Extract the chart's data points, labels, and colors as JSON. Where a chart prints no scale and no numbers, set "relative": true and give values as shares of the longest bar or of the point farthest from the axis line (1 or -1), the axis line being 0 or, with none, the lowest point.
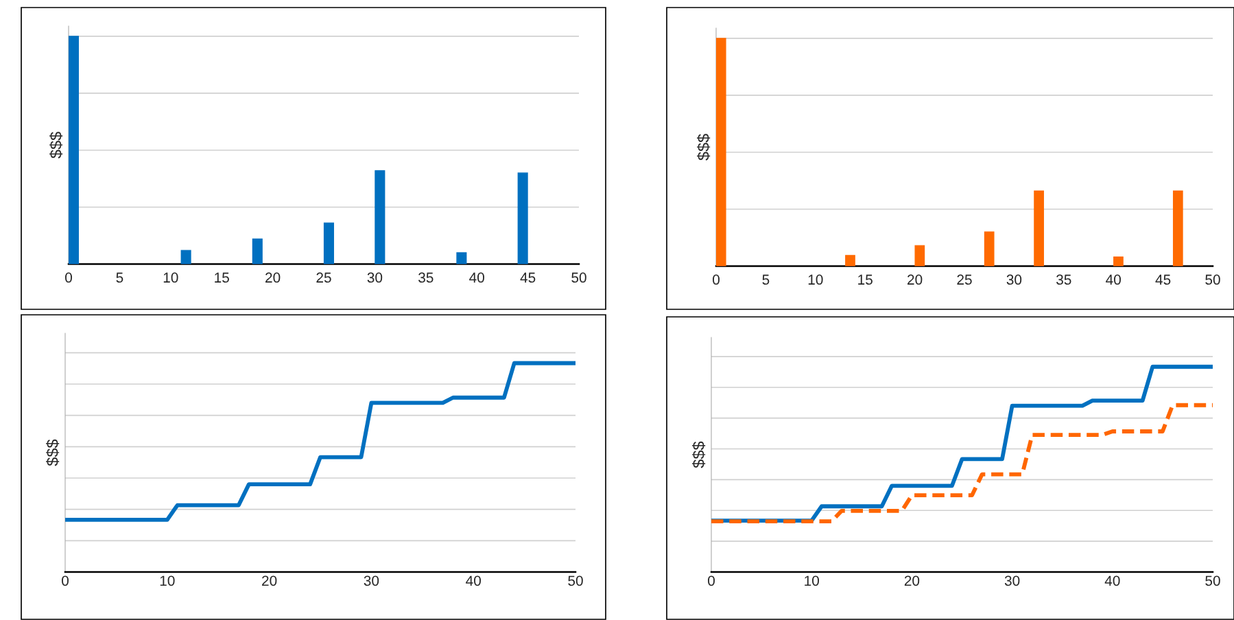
{
  "chart_data": [
    {
      "type": "bar",
      "ylabel": "$$$",
      "relative": true,
      "x": [
        0.5,
        11.5,
        18.5,
        25.5,
        30.5,
        38.5,
        44.5
      ],
      "values": [
        1,
        0.06,
        0.11,
        0.18,
        0.41,
        0.05,
        0.4
      ],
      "color": "#0070c0",
      "xlim": [
        0,
        50
      ],
      "xticks": [
        0,
        5,
        10,
        15,
        20,
        25,
        30,
        35,
        40,
        45,
        50
      ],
      "grid": "y",
      "tick_labels": "x"
    },
    {
      "type": "bar",
      "ylabel": "$$$",
      "relative": true,
      "x": [
        0.5,
        13.5,
        20.5,
        27.5,
        32.5,
        40.5,
        46.5
      ],
      "values": [
        1,
        0.047,
        0.09,
        0.15,
        0.33,
        0.04,
        0.33
      ],
      "color": "#ff6a00",
      "xlim": [
        0,
        50
      ],
      "xticks": [
        0,
        5,
        10,
        15,
        20,
        25,
        30,
        35,
        40,
        45,
        50
      ],
      "grid": "y",
      "tick_labels": "x"
    },
    {
      "type": "line",
      "ylabel": "$$$",
      "relative": true,
      "xlim": [
        0,
        50
      ],
      "xticks": [
        0,
        10,
        20,
        30,
        40,
        50
      ],
      "grid": "y",
      "tick_labels": "x",
      "series": [
        {
          "color": "#0070c0",
          "line_style": "solid",
          "x": [
            0,
            10,
            11,
            17,
            18,
            24,
            25,
            29,
            30,
            37,
            38,
            43,
            44,
            50
          ],
          "values": [
            0.25,
            0.25,
            0.32,
            0.32,
            0.42,
            0.42,
            0.55,
            0.55,
            0.81,
            0.81,
            0.835,
            0.835,
            1,
            1
          ]
        }
      ]
    },
    {
      "type": "line",
      "ylabel": "$$$",
      "relative": true,
      "xlim": [
        0,
        50
      ],
      "xticks": [
        0,
        10,
        20,
        30,
        40,
        50
      ],
      "grid": "y",
      "tick_labels": "x",
      "series": [
        {
          "color": "#0070c0",
          "line_style": "solid",
          "x": [
            0,
            10,
            11,
            17,
            18,
            24,
            25,
            29,
            30,
            37,
            38,
            43,
            44,
            50
          ],
          "values": [
            0.25,
            0.25,
            0.32,
            0.32,
            0.42,
            0.42,
            0.55,
            0.55,
            0.81,
            0.81,
            0.835,
            0.835,
            1,
            1
          ]
        },
        {
          "color": "#ff6600",
          "line_style": "dashed",
          "x": [
            0,
            12,
            13,
            19,
            20,
            26,
            27,
            31,
            32,
            39,
            40,
            45,
            46,
            50
          ],
          "values": [
            0.247,
            0.247,
            0.298,
            0.298,
            0.374,
            0.374,
            0.476,
            0.476,
            0.668,
            0.668,
            0.685,
            0.685,
            0.813,
            0.813
          ]
        }
      ]
    }
  ]
}
